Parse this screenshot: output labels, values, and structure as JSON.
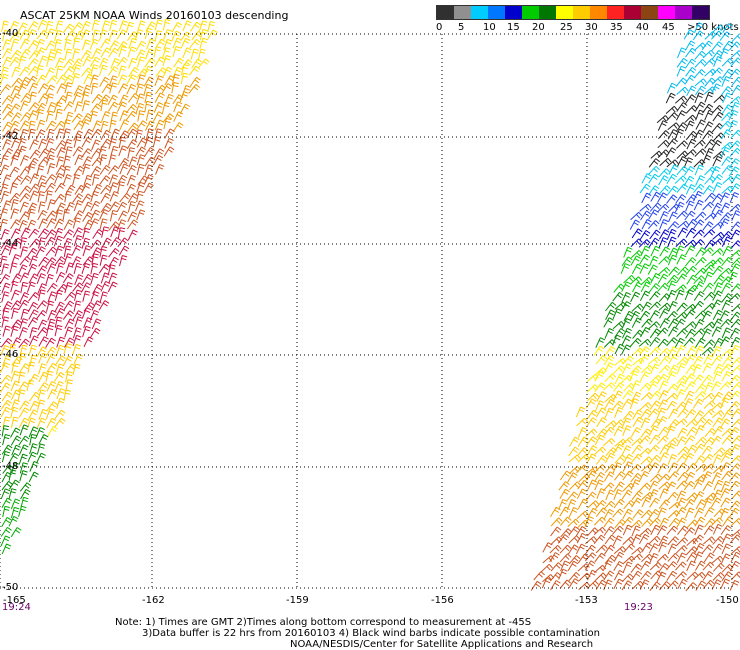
{
  "title": "ASCAT 25KM NOAA Winds 20160103 descending",
  "legend": {
    "colors": [
      "#303030",
      "#909090",
      "#00ccff",
      "#0077ff",
      "#0000cc",
      "#00cc00",
      "#007700",
      "#ffff00",
      "#ffcc00",
      "#ff8800",
      "#ff2222",
      "#aa0033",
      "#8b4513",
      "#ff00ff",
      "#aa00cc",
      "#330066"
    ],
    "labels": [
      "0",
      "5",
      "10",
      "15",
      "20",
      "25",
      "30",
      "35",
      "40",
      "45",
      ">50 knots"
    ]
  },
  "map": {
    "lon_ticks": [
      "-165",
      "-162",
      "-159",
      "-156",
      "-153",
      "-150"
    ],
    "lat_ticks": [
      "-40",
      "-42",
      "-44",
      "-46",
      "-48",
      "-50"
    ],
    "time_left": "19:24",
    "time_right": "19:23"
  },
  "notes": {
    "line1": "Note: 1) Times are GMT 2)Times along bottom correspond to measurement at -45S",
    "line2": "3)Data buffer is 22 hrs from 20160103 4) Black wind barbs indicate possible contamination",
    "line3": "NOAA/NESDIS/Center for Satellite Applications and Research"
  }
}
